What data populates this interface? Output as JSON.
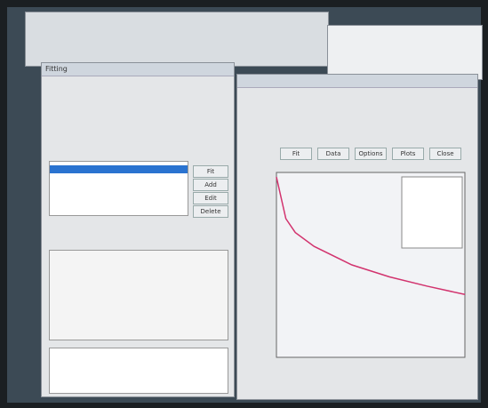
{
  "dialog": {
    "title": "Fitting",
    "buttons": [
      "Fit",
      "Add",
      "Edit",
      "Delete"
    ]
  },
  "plot_window": {
    "buttons": [
      "Fit",
      "Data",
      "Options",
      "Plots",
      "Close"
    ]
  },
  "chart_data": {
    "type": "line",
    "x": [
      0,
      0.5,
      1,
      2,
      4,
      6,
      8,
      10
    ],
    "series": [
      {
        "color": "#d2336e",
        "values": [
          9.75,
          7.5,
          6.75,
          6,
          5,
          4.35,
          3.85,
          3.4
        ]
      }
    ],
    "xlim": [
      0,
      10
    ],
    "ylim": [
      0,
      10
    ]
  }
}
